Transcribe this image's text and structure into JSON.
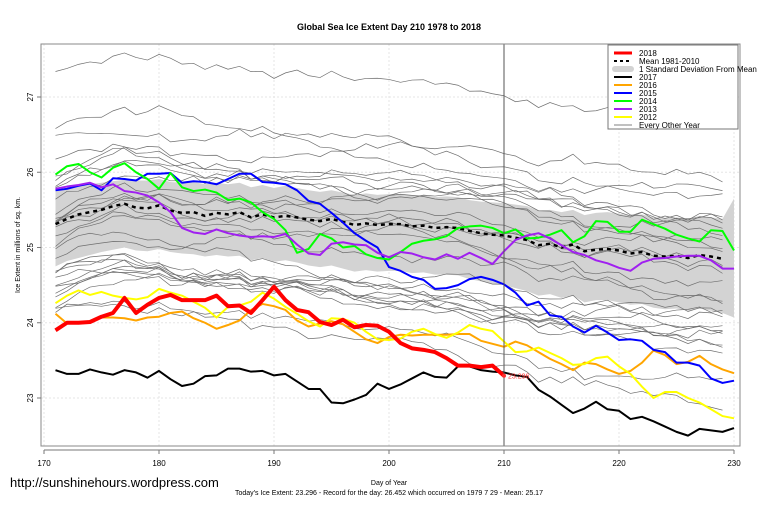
{
  "chart_data": {
    "type": "line",
    "title": "Global Sea Ice Extent Day 210 1978 to 2018",
    "xlabel": "Day of Year",
    "ylabel": "Ice Extent in millions of sq. km.",
    "xlim": [
      170,
      230
    ],
    "ylim": [
      22.2,
      27.7
    ],
    "xticks": [
      170,
      180,
      190,
      200,
      210,
      220,
      230
    ],
    "yticks": [
      23,
      24,
      25,
      26,
      27
    ],
    "grid": true,
    "vline_day": 210,
    "legend_position": "top-right",
    "legend": [
      {
        "label": "2018",
        "color": "#ff0000",
        "style": "thick"
      },
      {
        "label": "Mean 1981-2010",
        "color": "#000000",
        "style": "dashed"
      },
      {
        "label": "1 Standard Deviation From Mean",
        "color": "#d3d3d3",
        "style": "band"
      },
      {
        "label": "2017",
        "color": "#000000",
        "style": "solid"
      },
      {
        "label": "2016",
        "color": "#ffa500",
        "style": "solid"
      },
      {
        "label": "2015",
        "color": "#0000ff",
        "style": "solid"
      },
      {
        "label": "2014",
        "color": "#00ff00",
        "style": "solid"
      },
      {
        "label": "2013",
        "color": "#a020f0",
        "style": "solid"
      },
      {
        "label": "2012",
        "color": "#ffff00",
        "style": "solid"
      },
      {
        "label": "Every Other Year",
        "color": "#808080",
        "style": "thin"
      }
    ],
    "annotation": {
      "day": 210,
      "value": 23.296,
      "text": "23.296"
    },
    "series": [
      {
        "name": "2018",
        "color": "#ff0000",
        "width": 4,
        "x_start": 171,
        "values": [
          23.9,
          24.0,
          24.0,
          24.01,
          24.08,
          24.13,
          24.33,
          24.13,
          24.24,
          24.33,
          24.37,
          24.3,
          24.3,
          24.3,
          24.36,
          24.22,
          24.23,
          24.13,
          24.3,
          24.48,
          24.3,
          24.17,
          24.14,
          24.01,
          23.97,
          24.04,
          23.94,
          23.97,
          23.96,
          23.88,
          23.73,
          23.66,
          23.64,
          23.61,
          23.53,
          23.43,
          23.43,
          23.41,
          23.43,
          23.296
        ]
      },
      {
        "name": "Mean 1981-2010",
        "color": "#000000",
        "width": 2.5,
        "dash": true,
        "x_start": 171,
        "values": [
          25.31,
          25.38,
          25.44,
          25.47,
          25.5,
          25.55,
          25.58,
          25.53,
          25.52,
          25.56,
          25.49,
          25.46,
          25.47,
          25.42,
          25.46,
          25.44,
          25.47,
          25.4,
          25.44,
          25.4,
          25.42,
          25.4,
          25.37,
          25.35,
          25.38,
          25.34,
          25.3,
          25.32,
          25.3,
          25.31,
          25.31,
          25.28,
          25.29,
          25.26,
          25.27,
          25.26,
          25.22,
          25.19,
          25.17,
          25.16,
          25.13,
          25.1,
          25.03,
          25.05,
          25.0,
          25.04,
          24.95,
          24.97,
          24.98,
          24.96,
          24.92,
          24.94,
          24.89,
          24.88,
          24.89,
          24.86,
          24.9,
          24.88,
          24.85
        ]
      },
      {
        "name": "2017",
        "color": "#000000",
        "width": 2,
        "x_start": 171,
        "values": [
          23.37,
          23.32,
          23.32,
          23.38,
          23.34,
          23.31,
          23.37,
          23.34,
          23.27,
          23.36,
          23.25,
          23.16,
          23.19,
          23.29,
          23.3,
          23.39,
          23.39,
          23.35,
          23.36,
          23.3,
          23.32,
          23.22,
          23.12,
          23.12,
          22.94,
          22.93,
          22.98,
          23.04,
          23.19,
          23.12,
          23.18,
          23.26,
          23.34,
          23.28,
          23.27,
          23.42,
          23.42,
          23.37,
          23.35,
          23.34,
          23.3,
          23.28,
          23.11,
          23.02,
          22.91,
          22.8,
          22.86,
          22.95,
          22.85,
          22.83,
          22.72,
          22.75,
          22.69,
          22.62,
          22.55,
          22.5,
          22.59,
          22.57,
          22.55,
          22.6
        ]
      },
      {
        "name": "2016",
        "color": "#ffa500",
        "width": 2,
        "x_start": 171,
        "values": [
          24.12,
          23.99,
          23.99,
          24.02,
          24.07,
          24.07,
          24.06,
          24.03,
          24.07,
          24.08,
          24.13,
          24.15,
          24.06,
          24.0,
          23.92,
          23.97,
          24.03,
          24.17,
          24.25,
          24.22,
          24.17,
          24.03,
          23.95,
          23.99,
          24.02,
          23.98,
          23.88,
          23.78,
          23.73,
          23.81,
          23.84,
          23.83,
          23.84,
          23.84,
          23.84,
          23.85,
          23.85,
          23.76,
          23.72,
          23.68,
          23.75,
          23.7,
          23.61,
          23.52,
          23.45,
          23.37,
          23.47,
          23.45,
          23.38,
          23.32,
          23.36,
          23.47,
          23.63,
          23.57,
          23.45,
          23.48,
          23.56,
          23.45,
          23.38,
          23.33
        ]
      },
      {
        "name": "2015",
        "color": "#0000ff",
        "width": 2,
        "x_start": 171,
        "values": [
          25.76,
          25.78,
          25.82,
          25.85,
          25.76,
          25.92,
          25.91,
          25.89,
          25.98,
          25.98,
          25.99,
          25.86,
          25.88,
          25.87,
          25.84,
          25.91,
          25.98,
          25.98,
          25.87,
          25.86,
          25.84,
          25.76,
          25.62,
          25.58,
          25.46,
          25.33,
          25.19,
          25.09,
          25.0,
          24.74,
          24.69,
          24.61,
          24.57,
          24.45,
          24.46,
          24.5,
          24.58,
          24.61,
          24.57,
          24.51,
          24.4,
          24.23,
          24.28,
          24.1,
          24.08,
          23.95,
          23.87,
          23.96,
          23.87,
          23.77,
          23.78,
          23.76,
          23.64,
          23.61,
          23.47,
          23.47,
          23.43,
          23.26,
          23.2,
          23.23
        ]
      },
      {
        "name": "2014",
        "color": "#00ff00",
        "width": 2,
        "x_start": 171,
        "values": [
          25.97,
          26.08,
          26.11,
          26.0,
          25.93,
          26.06,
          26.12,
          26.0,
          25.91,
          25.78,
          25.99,
          25.8,
          25.75,
          25.77,
          25.73,
          25.63,
          25.65,
          25.6,
          25.47,
          25.38,
          25.23,
          24.93,
          24.98,
          25.18,
          25.12,
          25.0,
          25.02,
          24.91,
          24.86,
          24.84,
          24.94,
          25.05,
          25.09,
          25.11,
          25.15,
          25.26,
          25.28,
          25.29,
          25.26,
          25.19,
          25.24,
          25.12,
          25.13,
          25.17,
          25.23,
          25.07,
          25.15,
          25.35,
          25.34,
          25.21,
          25.21,
          25.37,
          25.31,
          25.25,
          25.17,
          25.12,
          25.08,
          25.23,
          25.22,
          24.96
        ]
      },
      {
        "name": "2013",
        "color": "#a020f0",
        "width": 2,
        "x_start": 171,
        "values": [
          25.78,
          25.81,
          25.83,
          25.86,
          25.8,
          25.84,
          25.75,
          25.73,
          25.69,
          25.6,
          25.47,
          25.26,
          25.2,
          25.18,
          25.24,
          25.19,
          25.16,
          25.14,
          25.15,
          25.14,
          25.18,
          25.04,
          24.92,
          24.9,
          25.05,
          25.07,
          25.04,
          25.03,
          24.93,
          24.87,
          24.94,
          24.92,
          24.87,
          24.84,
          24.91,
          24.85,
          24.93,
          24.86,
          24.78,
          24.95,
          25.1,
          25.16,
          25.19,
          25.12,
          25.03,
          24.94,
          24.9,
          24.83,
          24.79,
          24.73,
          24.69,
          24.8,
          24.85,
          24.86,
          24.88,
          24.89,
          24.89,
          24.83,
          24.72,
          24.72
        ]
      },
      {
        "name": "2012",
        "color": "#ffff00",
        "width": 2,
        "x_start": 171,
        "values": [
          24.26,
          24.36,
          24.43,
          24.37,
          24.41,
          24.36,
          24.33,
          24.31,
          24.34,
          24.45,
          24.4,
          24.36,
          24.28,
          24.2,
          24.07,
          24.21,
          24.23,
          24.28,
          24.4,
          24.32,
          24.21,
          24.12,
          24.02,
          23.95,
          24.06,
          24.05,
          24.0,
          23.88,
          23.78,
          23.77,
          23.79,
          23.88,
          23.92,
          23.85,
          23.8,
          23.87,
          23.97,
          23.92,
          23.89,
          23.75,
          23.61,
          23.62,
          23.67,
          23.6,
          23.53,
          23.44,
          23.45,
          23.53,
          23.55,
          23.42,
          23.32,
          23.15,
          23.0,
          23.08,
          23.08,
          23.0,
          22.94,
          22.85,
          22.76,
          22.73
        ]
      }
    ],
    "band": {
      "x_start": 171,
      "upper": [
        25.75,
        25.8,
        25.82,
        25.84,
        25.86,
        25.88,
        25.9,
        25.89,
        25.89,
        25.91,
        25.87,
        25.86,
        25.87,
        25.84,
        25.86,
        25.84,
        25.86,
        25.8,
        25.83,
        25.79,
        25.82,
        25.79,
        25.76,
        25.74,
        25.76,
        25.73,
        25.7,
        25.72,
        25.7,
        25.71,
        25.71,
        25.69,
        25.7,
        25.67,
        25.68,
        25.67,
        25.63,
        25.61,
        25.6,
        25.59,
        25.57,
        25.55,
        25.49,
        25.5,
        25.47,
        25.5,
        25.43,
        25.46,
        25.47,
        25.45,
        25.42,
        25.44,
        25.4,
        25.39,
        25.4,
        25.38,
        25.42,
        25.4,
        25.38,
        25.65
      ],
      "lower": [
        24.75,
        24.82,
        24.86,
        24.9,
        24.94,
        24.97,
        25.0,
        24.96,
        24.95,
        24.98,
        24.94,
        24.92,
        24.91,
        24.88,
        24.9,
        24.88,
        24.89,
        24.83,
        24.86,
        24.81,
        24.83,
        24.8,
        24.76,
        24.74,
        24.76,
        24.72,
        24.68,
        24.7,
        24.68,
        24.69,
        24.69,
        24.66,
        24.67,
        24.64,
        24.64,
        24.63,
        24.58,
        24.55,
        24.52,
        24.5,
        24.46,
        24.42,
        24.36,
        24.38,
        24.33,
        24.36,
        24.27,
        24.3,
        24.3,
        24.27,
        24.24,
        24.25,
        24.2,
        24.18,
        24.19,
        24.16,
        24.19,
        24.16,
        24.13,
        24.07
      ]
    },
    "other_years_count": 30
  },
  "footer": {
    "url": "http://sunshinehours.wordpress.com",
    "summary": "Today's Ice Extent: 23.296  - Record for the day: 26.452 which occurred on 1979 7 29  - Mean: 25.17"
  }
}
